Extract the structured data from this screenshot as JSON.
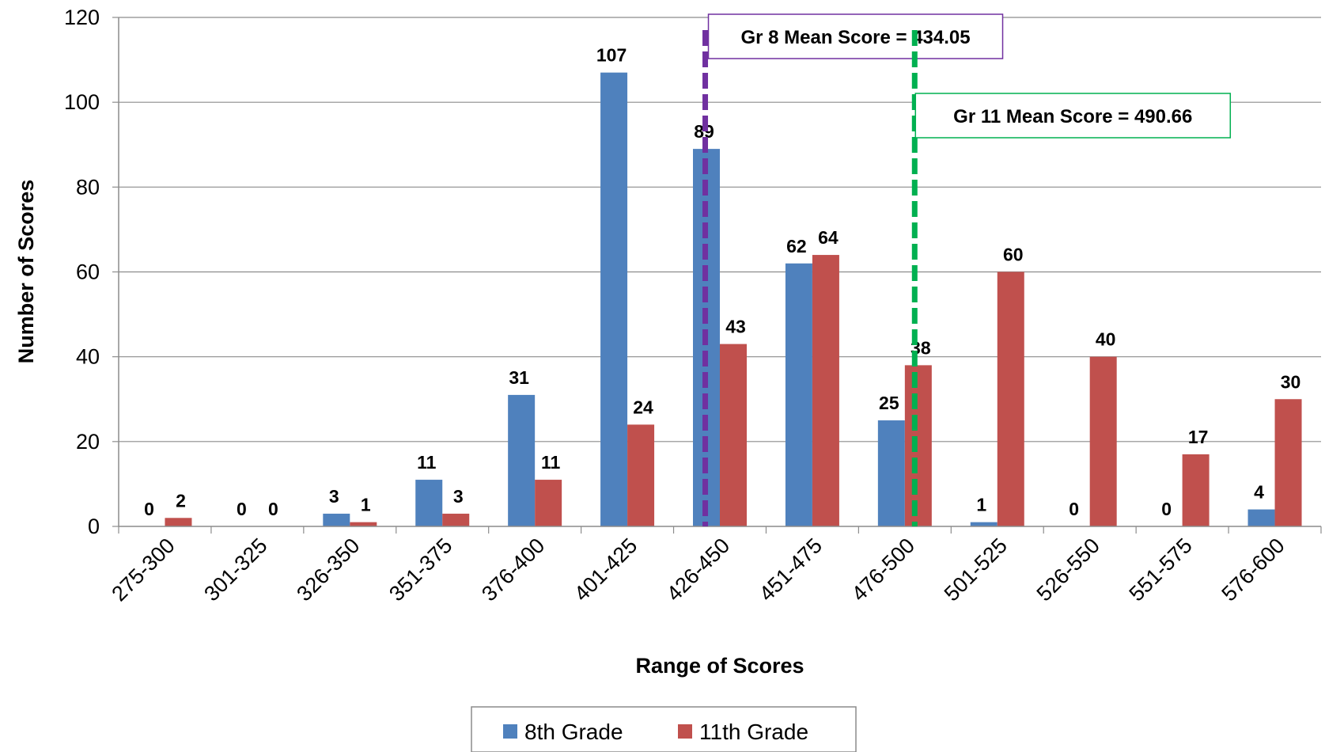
{
  "chart_data": {
    "type": "bar",
    "xlabel": "Range of Scores",
    "ylabel": "Number of Scores",
    "ylim": [
      0,
      120
    ],
    "yticks": [
      0,
      20,
      40,
      60,
      80,
      100,
      120
    ],
    "grid": true,
    "legend_position": "bottom",
    "categories": [
      "275-300",
      "301-325",
      "326-350",
      "351-375",
      "376-400",
      "401-425",
      "426-450",
      "451-475",
      "476-500",
      "501-525",
      "526-550",
      "551-575",
      "576-600"
    ],
    "series": [
      {
        "name": "8th Grade",
        "color": "#4F81BD",
        "values": [
          0,
          0,
          3,
          11,
          31,
          107,
          89,
          62,
          25,
          1,
          0,
          0,
          4
        ]
      },
      {
        "name": "11th Grade",
        "color": "#C0504D",
        "values": [
          2,
          0,
          1,
          3,
          11,
          24,
          43,
          64,
          38,
          60,
          40,
          17,
          30
        ]
      }
    ],
    "reference_lines": [
      {
        "label": "Gr 8 Mean Score = 434.05",
        "value": 434.05,
        "color": "#7030A0"
      },
      {
        "label": "Gr 11 Mean Score = 490.66",
        "value": 490.66,
        "color": "#00B050"
      }
    ]
  }
}
